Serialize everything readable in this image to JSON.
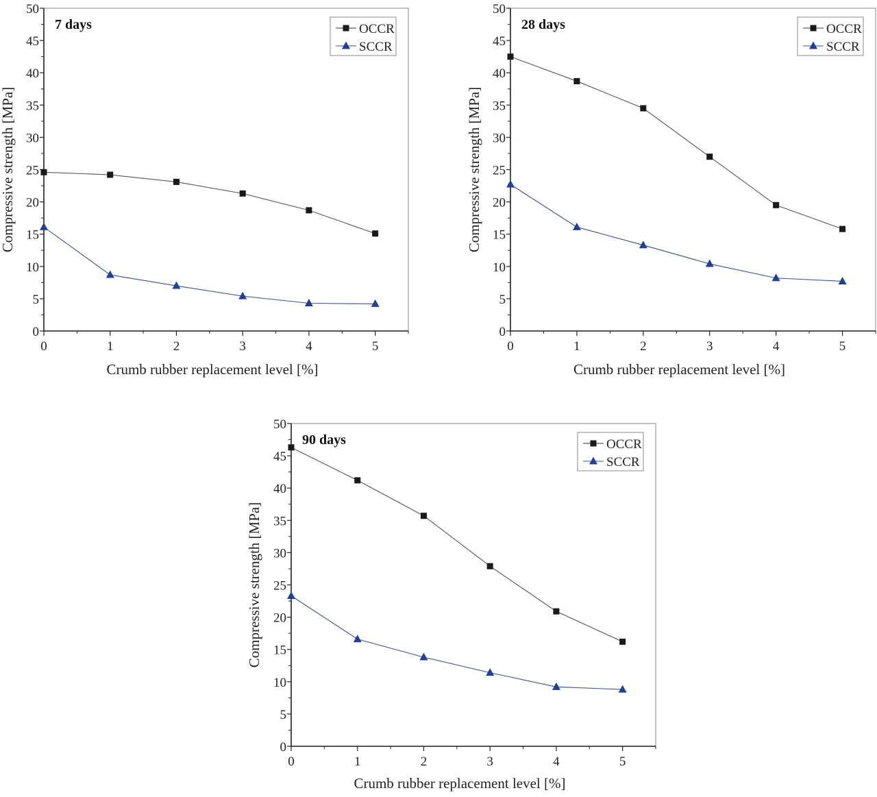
{
  "chart_data": [
    {
      "type": "line",
      "title": "7 days",
      "xlabel": "Crumb rubber replacement level [%]",
      "ylabel": "Compressive strength [MPa]",
      "x": [
        0,
        1,
        2,
        3,
        4,
        5
      ],
      "x_ticks": [
        "0",
        "1",
        "2",
        "3",
        "4",
        "5"
      ],
      "y_ticks": [
        "0",
        "5",
        "10",
        "15",
        "20",
        "25",
        "30",
        "35",
        "40",
        "45",
        "50"
      ],
      "xlim": [
        0,
        5.5
      ],
      "ylim": [
        0,
        50
      ],
      "grid": false,
      "legend": "top-right",
      "series": [
        {
          "name": "OCCR",
          "marker": "square",
          "color": "#1a1a1a",
          "values": [
            24.6,
            24.2,
            23.1,
            21.3,
            18.7,
            15.1
          ]
        },
        {
          "name": "SCCR",
          "marker": "triangle",
          "color": "#1f3f9a",
          "values": [
            16.1,
            8.7,
            7.0,
            5.4,
            4.3,
            4.2
          ]
        }
      ]
    },
    {
      "type": "line",
      "title": "28 days",
      "xlabel": "Crumb rubber replacement level [%]",
      "ylabel": "Compressive strength [MPa]",
      "x": [
        0,
        1,
        2,
        3,
        4,
        5
      ],
      "x_ticks": [
        "0",
        "1",
        "2",
        "3",
        "4",
        "5"
      ],
      "y_ticks": [
        "0",
        "5",
        "10",
        "15",
        "20",
        "25",
        "30",
        "35",
        "40",
        "45",
        "50"
      ],
      "xlim": [
        0,
        5.5
      ],
      "ylim": [
        0,
        50
      ],
      "grid": false,
      "legend": "top-right",
      "series": [
        {
          "name": "OCCR",
          "marker": "square",
          "color": "#1a1a1a",
          "values": [
            42.5,
            38.7,
            34.5,
            27.0,
            19.5,
            15.8
          ]
        },
        {
          "name": "SCCR",
          "marker": "triangle",
          "color": "#1f3f9a",
          "values": [
            22.7,
            16.1,
            13.3,
            10.4,
            8.2,
            7.7
          ]
        }
      ]
    },
    {
      "type": "line",
      "title": "90 days",
      "xlabel": "Crumb rubber replacement level [%]",
      "ylabel": "Compressive strength [MPa]",
      "x": [
        0,
        1,
        2,
        3,
        4,
        5
      ],
      "x_ticks": [
        "0",
        "1",
        "2",
        "3",
        "4",
        "5"
      ],
      "y_ticks": [
        "0",
        "5",
        "10",
        "15",
        "20",
        "25",
        "30",
        "35",
        "40",
        "45",
        "50"
      ],
      "xlim": [
        0,
        5.5
      ],
      "ylim": [
        0,
        50
      ],
      "grid": false,
      "legend": "top-right",
      "series": [
        {
          "name": "OCCR",
          "marker": "square",
          "color": "#1a1a1a",
          "values": [
            46.3,
            41.2,
            35.7,
            27.9,
            20.9,
            16.2
          ]
        },
        {
          "name": "SCCR",
          "marker": "triangle",
          "color": "#1f3f9a",
          "values": [
            23.3,
            16.6,
            13.8,
            11.4,
            9.2,
            8.8
          ]
        }
      ]
    }
  ]
}
